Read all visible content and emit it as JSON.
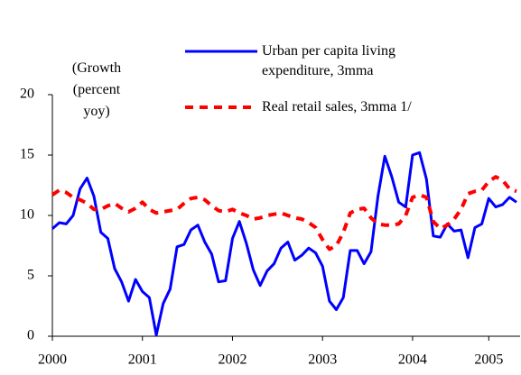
{
  "chart_data": {
    "type": "line",
    "annotation": [
      "(Growth",
      "(percent",
      "yoy)"
    ],
    "categories": [
      "2000",
      null,
      null,
      null,
      null,
      null,
      null,
      null,
      null,
      null,
      null,
      null,
      null,
      "2001",
      null,
      null,
      null,
      null,
      null,
      null,
      null,
      null,
      null,
      null,
      null,
      null,
      "2002",
      null,
      null,
      null,
      null,
      null,
      null,
      null,
      null,
      null,
      null,
      null,
      null,
      "2003",
      null,
      null,
      null,
      null,
      null,
      null,
      null,
      null,
      null,
      null,
      null,
      null,
      "2004",
      null,
      null,
      null,
      null,
      null,
      null,
      null,
      null,
      null,
      null,
      "2005",
      null,
      null,
      null,
      null
    ],
    "series": [
      {
        "name": "Urban per capita living expenditure, 3mma",
        "color": "#0000ff",
        "dash": false,
        "values": [
          8.9,
          9.4,
          9.3,
          10,
          12.2,
          13.1,
          11.6,
          8.6,
          8.1,
          5.6,
          4.5,
          2.9,
          4.7,
          3.7,
          3.2,
          0.1,
          2.7,
          3.9,
          7.4,
          7.6,
          8.8,
          9.2,
          7.8,
          6.8,
          4.5,
          4.6,
          8.1,
          9.5,
          7.7,
          5.5,
          4.2,
          5.4,
          6.0,
          7.3,
          7.8,
          6.3,
          6.7,
          7.3,
          6.9,
          5.8,
          2.9,
          2.2,
          3.2,
          7.1,
          7.1,
          6.0,
          7.0,
          11.6,
          14.9,
          13.2,
          11.1,
          10.7,
          15.0,
          15.2,
          13.0,
          8.3,
          8.2,
          9.3,
          8.7,
          8.8,
          6.5,
          9.0,
          9.3,
          11.4,
          10.7,
          10.9,
          11.5,
          11.1
        ]
      },
      {
        "name": "Real retail sales, 3mma 1/",
        "color": "#ff0000",
        "dash": true,
        "values": [
          11.7,
          12.1,
          11.9,
          11.5,
          11.3,
          11,
          10.5,
          10.5,
          10.8,
          11,
          10.6,
          10.3,
          10.6,
          11.1,
          10.5,
          10.2,
          10.3,
          10.4,
          10.5,
          11,
          11.4,
          11.5,
          11.3,
          10.8,
          10.4,
          10.3,
          10.5,
          10.2,
          10,
          9.7,
          9.8,
          10,
          10.1,
          10.2,
          10,
          9.8,
          9.7,
          9.4,
          9,
          8,
          7.2,
          7.5,
          8.6,
          10.2,
          10.5,
          10.6,
          9.8,
          9.3,
          9.2,
          9.2,
          9.3,
          10,
          11.5,
          11.7,
          11.5,
          9.5,
          8.9,
          9.2,
          9.7,
          10.5,
          11.8,
          12,
          12.1,
          12.8,
          13.2,
          12.9,
          12.2,
          12
        ]
      }
    ],
    "ylim": [
      0,
      20
    ],
    "yticks": [
      0,
      5,
      10,
      15,
      20
    ],
    "grid": false
  }
}
